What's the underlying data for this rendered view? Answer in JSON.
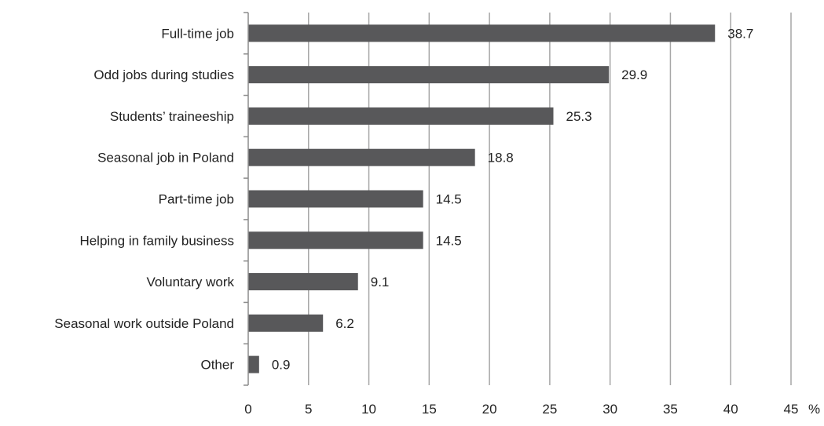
{
  "chart_data": {
    "type": "bar",
    "orientation": "horizontal",
    "title": "",
    "xlabel": "",
    "ylabel": "",
    "x_unit": "%",
    "xlim": [
      0,
      45
    ],
    "x_ticks": [
      0,
      5,
      10,
      15,
      20,
      25,
      30,
      35,
      40,
      45
    ],
    "grid": true,
    "legend": "none",
    "categories": [
      "Full-time job",
      "Odd jobs during studies",
      "Students’ traineeship",
      "Seasonal job in Poland",
      "Part-time job",
      "Helping in family business",
      "Voluntary work",
      "Seasonal work outside Poland",
      "Other"
    ],
    "values": [
      38.7,
      29.9,
      25.3,
      18.8,
      14.5,
      14.5,
      9.1,
      6.2,
      0.9
    ],
    "value_labels": [
      "38.7",
      "29.9",
      "25.3",
      "18.8",
      "14.5",
      "14.5",
      "9.1",
      "6.2",
      "0.9"
    ],
    "bar_color": "#58585a",
    "grid_color": "#a6a6a6",
    "axis_color": "#8c8c8c"
  }
}
